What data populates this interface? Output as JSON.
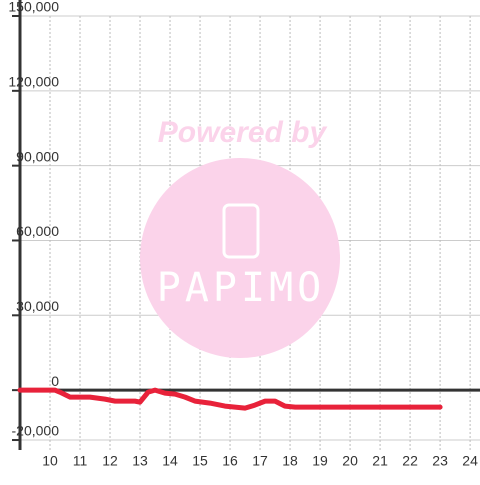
{
  "chart_data": {
    "type": "line",
    "watermark": {
      "top": "Powered by",
      "brand": "PAPIMO"
    },
    "x": [
      9.0,
      10.17,
      10.33,
      10.67,
      11.33,
      11.83,
      12.17,
      12.83,
      13.0,
      13.27,
      13.5,
      13.83,
      14.17,
      14.5,
      14.83,
      15.33,
      15.83,
      16.5,
      16.83,
      17.17,
      17.5,
      17.83,
      18.17,
      23.0
    ],
    "series": [
      {
        "color": "#e8223a",
        "values": [
          0,
          0,
          -800,
          -2800,
          -2800,
          -3600,
          -4400,
          -4400,
          -4800,
          -800,
          0,
          -1200,
          -1600,
          -2800,
          -4400,
          -5200,
          -6400,
          -7200,
          -6000,
          -4400,
          -4400,
          -6400,
          -6800,
          -6800
        ]
      }
    ],
    "xlim": [
      9,
      24.33
    ],
    "xticks": [
      10,
      11,
      12,
      13,
      14,
      15,
      16,
      17,
      18,
      19,
      20,
      21,
      22,
      23,
      24
    ],
    "ylim": [
      -24000,
      150000
    ],
    "yticks": [
      {
        "value": -20000,
        "label": "-20,000"
      },
      0,
      {
        "value": 30000,
        "label": "30,000"
      },
      {
        "value": 60000,
        "label": "60,000"
      },
      {
        "value": 90000,
        "label": "90,000"
      },
      {
        "value": 120000,
        "label": "120,000"
      },
      {
        "value": 150000,
        "label": "150,000"
      }
    ],
    "grid": true
  }
}
